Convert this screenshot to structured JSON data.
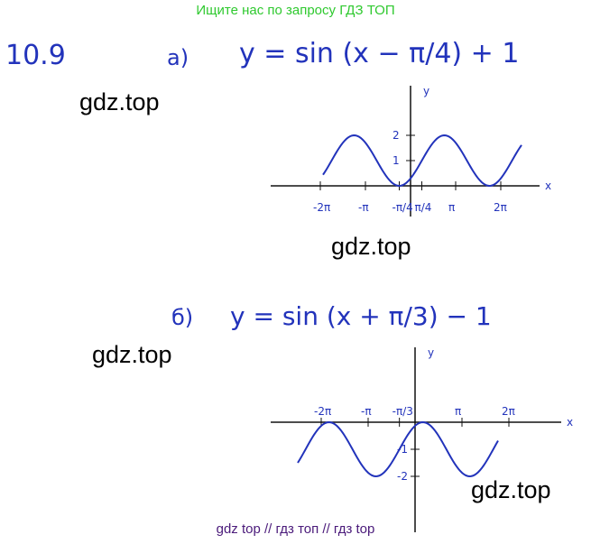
{
  "banner": "Ищите нас по запросу ГДЗ ТОП",
  "problem_number": "10.9",
  "part_a": {
    "label": "а)",
    "equation": "y = sin (x − π/4) + 1",
    "graph": {
      "function": "sin(x - pi/4) + 1",
      "x_axis_label": "x",
      "y_axis_label": "y",
      "x_ticks": [
        "-2π",
        "-π",
        "-π/4",
        "π/4",
        "π",
        "2π"
      ],
      "y_ticks": [
        "1",
        "2"
      ]
    }
  },
  "part_b": {
    "label": "б)",
    "equation": "y = sin (x + π/3) − 1",
    "graph": {
      "function": "sin(x + pi/3) - 1",
      "x_axis_label": "x",
      "y_axis_label": "y",
      "x_ticks": [
        "-2π",
        "-π",
        "-π/3",
        "π",
        "2π"
      ],
      "y_ticks": [
        "-1",
        "-2"
      ]
    }
  },
  "watermarks": [
    "gdz.top",
    "gdz.top",
    "gdz.top",
    "gdz.top"
  ],
  "footer": "gdz top  //  гдз топ  //  гдз top",
  "colors": {
    "ink": "#2233bb",
    "banner": "#2fc92f",
    "footer": "#4a1a7a"
  }
}
